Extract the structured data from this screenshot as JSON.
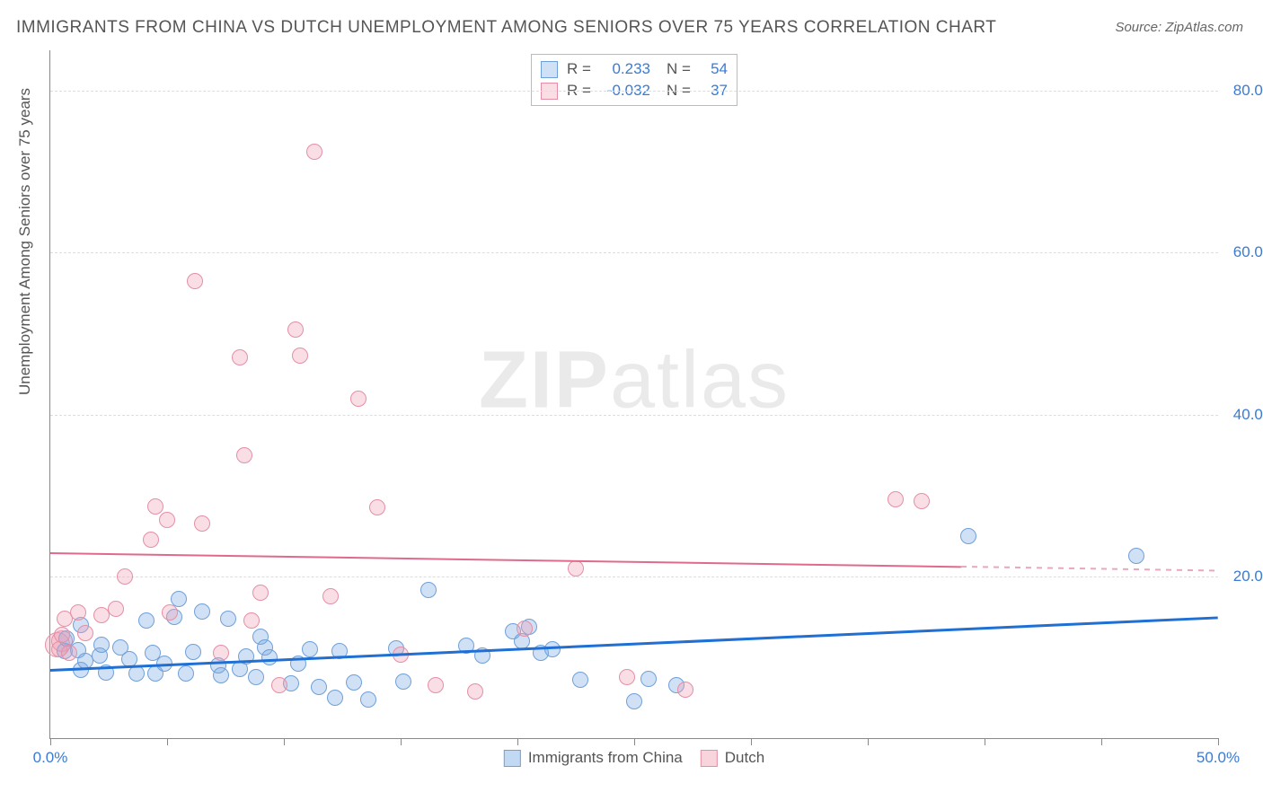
{
  "title": "IMMIGRANTS FROM CHINA VS DUTCH UNEMPLOYMENT AMONG SENIORS OVER 75 YEARS CORRELATION CHART",
  "source": "Source: ZipAtlas.com",
  "ylabel": "Unemployment Among Seniors over 75 years",
  "watermark_a": "ZIP",
  "watermark_b": "atlas",
  "chart": {
    "type": "scatter",
    "xlim": [
      0,
      50
    ],
    "ylim": [
      0,
      85
    ],
    "ytick_values": [
      20,
      40,
      60,
      80
    ],
    "ytick_labels": [
      "20.0%",
      "40.0%",
      "60.0%",
      "80.0%"
    ],
    "xtick_values": [
      0,
      5,
      10,
      15,
      20,
      25,
      30,
      35,
      40,
      45,
      50
    ],
    "xtick_labels_shown": {
      "0": "0.0%",
      "50": "50.0%"
    },
    "background_color": "#ffffff",
    "grid_color": "#dddddd",
    "axis_color": "#888888",
    "label_color": "#3a7bd5",
    "marker_radius": 9,
    "marker_border": 1.2,
    "series": [
      {
        "name": "Immigrants from China",
        "color_fill": "rgba(120,170,230,0.35)",
        "color_stroke": "#6fa0d8",
        "R": "0.233",
        "N": "54",
        "trend": {
          "x1": 0,
          "y1": 8.5,
          "x2": 50,
          "y2": 15.0,
          "color": "#1f6fd4",
          "width": 3
        },
        "points": [
          [
            0.6,
            10.8
          ],
          [
            0.7,
            12.3
          ],
          [
            1.2,
            10.9
          ],
          [
            1.3,
            14.0
          ],
          [
            1.3,
            8.4
          ],
          [
            1.5,
            9.5
          ],
          [
            2.1,
            10.2
          ],
          [
            2.2,
            11.5
          ],
          [
            2.4,
            8.1
          ],
          [
            3.0,
            11.2
          ],
          [
            3.4,
            9.8
          ],
          [
            3.7,
            8.0
          ],
          [
            4.1,
            14.5
          ],
          [
            4.4,
            10.5
          ],
          [
            4.5,
            8.0
          ],
          [
            4.9,
            9.2
          ],
          [
            5.3,
            15.0
          ],
          [
            5.5,
            17.2
          ],
          [
            5.8,
            8.0
          ],
          [
            6.1,
            10.7
          ],
          [
            6.5,
            15.7
          ],
          [
            7.2,
            9.0
          ],
          [
            7.3,
            7.8
          ],
          [
            7.6,
            14.8
          ],
          [
            8.1,
            8.5
          ],
          [
            8.4,
            10.1
          ],
          [
            8.8,
            7.5
          ],
          [
            9.0,
            12.5
          ],
          [
            9.2,
            11.2
          ],
          [
            9.4,
            10.0
          ],
          [
            10.3,
            6.8
          ],
          [
            10.6,
            9.2
          ],
          [
            11.1,
            11.0
          ],
          [
            11.5,
            6.3
          ],
          [
            12.2,
            5.0
          ],
          [
            12.4,
            10.8
          ],
          [
            13.0,
            6.9
          ],
          [
            13.6,
            4.8
          ],
          [
            14.8,
            11.1
          ],
          [
            15.1,
            7.0
          ],
          [
            16.2,
            18.3
          ],
          [
            17.8,
            11.4
          ],
          [
            18.5,
            10.2
          ],
          [
            19.8,
            13.2
          ],
          [
            20.2,
            12.0
          ],
          [
            20.5,
            13.8
          ],
          [
            21.0,
            10.5
          ],
          [
            21.5,
            11.0
          ],
          [
            22.7,
            7.2
          ],
          [
            25.0,
            4.5
          ],
          [
            25.6,
            7.3
          ],
          [
            26.8,
            6.5
          ],
          [
            39.3,
            25.0
          ],
          [
            46.5,
            22.5
          ]
        ]
      },
      {
        "name": "Dutch",
        "color_fill": "rgba(240,160,180,0.35)",
        "color_stroke": "#e58fa6",
        "R": "-0.032",
        "N": "37",
        "trend_solid": {
          "x1": 0,
          "y1": 23.0,
          "x2": 39,
          "y2": 21.3,
          "color": "#e06a8c",
          "width": 2
        },
        "trend_dashed": {
          "x1": 39,
          "y1": 21.3,
          "x2": 50,
          "y2": 20.8,
          "color": "#e8a8ba",
          "width": 2
        },
        "points": [
          [
            0.4,
            11.0
          ],
          [
            0.5,
            12.8
          ],
          [
            0.6,
            14.8
          ],
          [
            0.8,
            10.5
          ],
          [
            1.2,
            15.5
          ],
          [
            1.5,
            13.0
          ],
          [
            2.2,
            15.2
          ],
          [
            2.8,
            16.0
          ],
          [
            3.2,
            20.0
          ],
          [
            4.3,
            24.5
          ],
          [
            4.5,
            28.6
          ],
          [
            5.0,
            27.0
          ],
          [
            5.1,
            15.5
          ],
          [
            6.2,
            56.5
          ],
          [
            6.5,
            26.5
          ],
          [
            7.3,
            10.5
          ],
          [
            8.1,
            47.0
          ],
          [
            8.3,
            35.0
          ],
          [
            8.6,
            14.5
          ],
          [
            9.0,
            18.0
          ],
          [
            9.8,
            6.5
          ],
          [
            10.5,
            50.5
          ],
          [
            10.7,
            47.3
          ],
          [
            11.3,
            72.5
          ],
          [
            12.0,
            17.5
          ],
          [
            13.2,
            42.0
          ],
          [
            14.0,
            28.5
          ],
          [
            15.0,
            10.3
          ],
          [
            16.5,
            6.5
          ],
          [
            18.2,
            5.8
          ],
          [
            20.3,
            13.5
          ],
          [
            22.5,
            21.0
          ],
          [
            24.7,
            7.5
          ],
          [
            27.2,
            6.0
          ],
          [
            36.2,
            29.5
          ],
          [
            37.3,
            29.3
          ]
        ],
        "extra_cluster": [
          [
            0.3,
            11.5,
            14
          ],
          [
            0.5,
            12.0,
            12
          ]
        ]
      }
    ]
  },
  "legend": {
    "items": [
      {
        "label": "Immigrants from China",
        "fill": "rgba(120,170,230,0.45)",
        "stroke": "#6fa0d8"
      },
      {
        "label": "Dutch",
        "fill": "rgba(240,160,180,0.45)",
        "stroke": "#e58fa6"
      }
    ]
  }
}
